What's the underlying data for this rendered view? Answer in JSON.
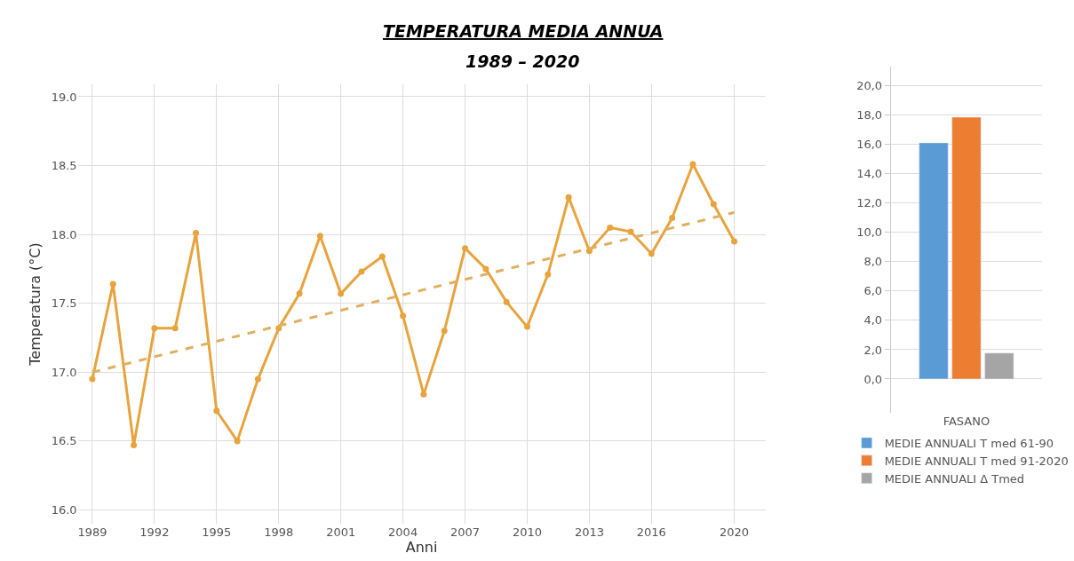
{
  "chart_data": [
    {
      "type": "line",
      "title": "TEMPERATURA MEDIA ANNUA",
      "subtitle": "1989 – 2020",
      "xlabel": "Anni",
      "ylabel": "Temperatura (°C)",
      "x": [
        1989,
        1990,
        1991,
        1992,
        1993,
        1994,
        1995,
        1996,
        1997,
        1998,
        1999,
        2000,
        2001,
        2002,
        2003,
        2004,
        2005,
        2006,
        2007,
        2008,
        2009,
        2010,
        2011,
        2012,
        2013,
        2014,
        2015,
        2016,
        2017,
        2018,
        2019,
        2020
      ],
      "series": [
        {
          "color": "#e8a33d",
          "values": [
            16.95,
            17.64,
            16.47,
            17.32,
            17.32,
            18.01,
            16.72,
            16.5,
            16.95,
            17.32,
            17.57,
            17.99,
            17.57,
            17.73,
            17.84,
            17.41,
            16.84,
            17.3,
            17.9,
            17.75,
            17.51,
            17.33,
            17.71,
            18.27,
            17.88,
            18.05,
            18.02,
            17.86,
            18.12,
            18.51,
            18.22,
            17.95
          ],
          "marker": "circle",
          "line_style": "solid"
        },
        {
          "type": "line",
          "color": "#e0b060",
          "x": [
            1989,
            2020
          ],
          "values": [
            17.0,
            18.16
          ],
          "marker": "none",
          "line_style": "dashed"
        }
      ],
      "xlim": [
        1988.3,
        2021.5
      ],
      "xticks": [
        1989,
        1992,
        1995,
        1998,
        2001,
        2004,
        2007,
        2010,
        2013,
        2016,
        2020
      ],
      "ylim": [
        15.9,
        19.09
      ],
      "yticks": [
        {
          "value": 16.0,
          "label": "16.0"
        },
        {
          "value": 16.5,
          "label": "16.5"
        },
        {
          "value": 17.0,
          "label": "17.0"
        },
        {
          "value": 17.5,
          "label": "17.5"
        },
        {
          "value": 18.0,
          "label": "18.0"
        },
        {
          "value": 18.5,
          "label": "18.5"
        },
        {
          "value": 19.0,
          "label": "19.0"
        }
      ],
      "grid": true,
      "legend": false
    },
    {
      "type": "bar",
      "categories": [
        "FASANO"
      ],
      "series": [
        {
          "name": "MEDIE ANNUALI T med 61-90",
          "color": "#5b9bd5",
          "values": [
            16.1
          ]
        },
        {
          "name": "MEDIE ANNUALI T med 91-2020",
          "color": "#ed7d31",
          "values": [
            17.85
          ]
        },
        {
          "name": "MEDIE ANNUALI Δ Tmed",
          "color": "#a5a5a5",
          "values": [
            1.77
          ]
        }
      ],
      "ylim": [
        -2.3,
        21.3
      ],
      "yticks": [
        {
          "value": 0,
          "label": "0,0"
        },
        {
          "value": 2,
          "label": "2,0"
        },
        {
          "value": 4,
          "label": "4,0"
        },
        {
          "value": 6,
          "label": "6,0"
        },
        {
          "value": 8,
          "label": "8,0"
        },
        {
          "value": 10,
          "label": "10,0"
        },
        {
          "value": 12,
          "label": "12,0"
        },
        {
          "value": 14,
          "label": "14,0"
        },
        {
          "value": 16,
          "label": "16,0"
        },
        {
          "value": 18,
          "label": "18,0"
        },
        {
          "value": 20,
          "label": "20,0"
        }
      ],
      "grid": "y",
      "legend": "bottom"
    }
  ]
}
